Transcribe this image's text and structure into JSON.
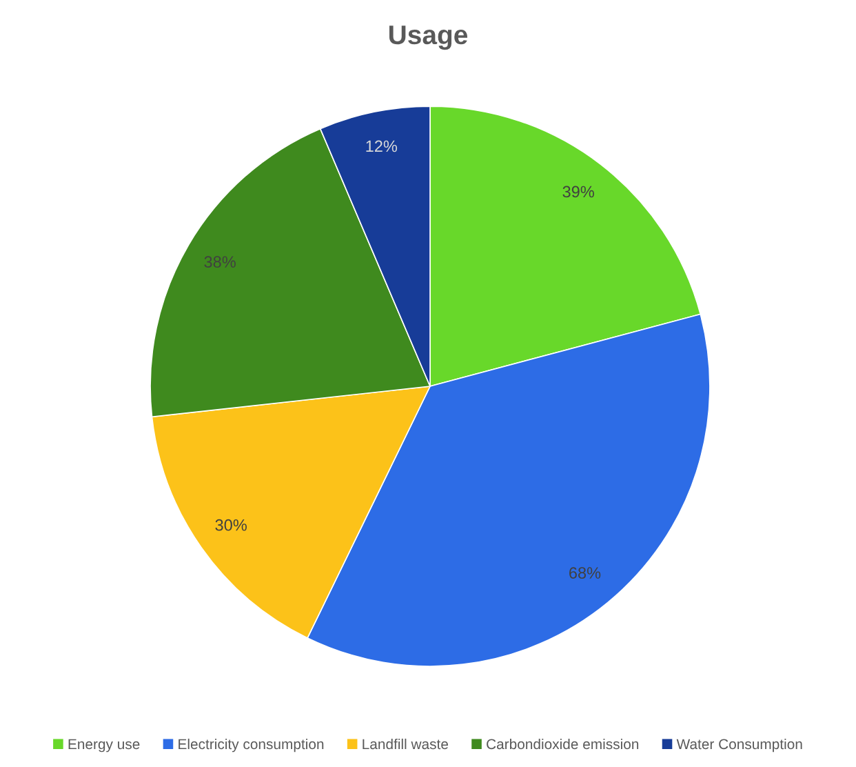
{
  "chart_data": {
    "type": "pie",
    "title": "Usage",
    "categories": [
      "Energy use",
      "Electricity consumption",
      "Landfill waste",
      "Carbondioxide emission",
      "Water Consumption"
    ],
    "values": [
      39,
      68,
      30,
      38,
      12
    ],
    "value_labels": [
      "39%",
      "68%",
      "30%",
      "38%",
      "12%"
    ],
    "colors": [
      "#68d82a",
      "#2d6ce6",
      "#fcc219",
      "#3f8a1e",
      "#173c98"
    ],
    "legend": "bottom"
  }
}
